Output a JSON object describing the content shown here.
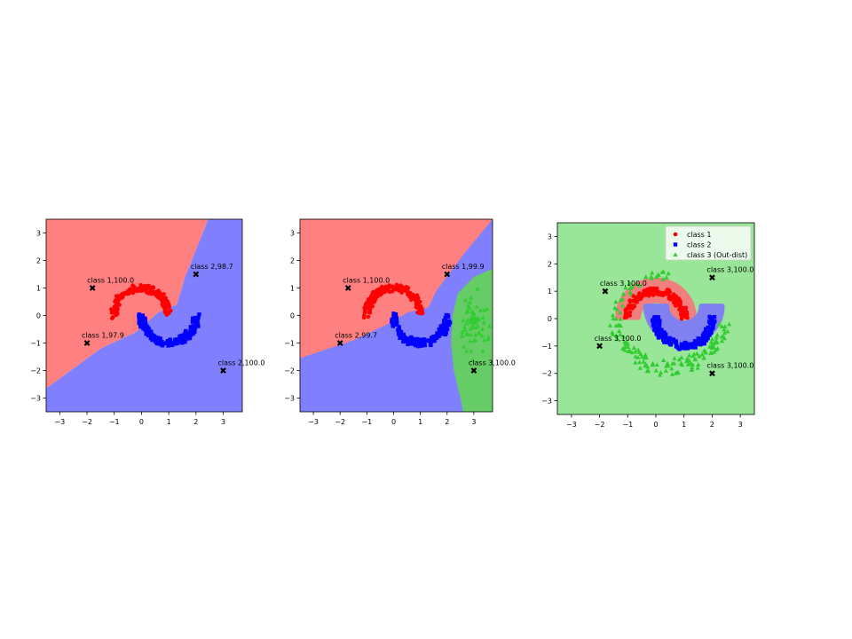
{
  "chart_data": [
    {
      "type": "scatter",
      "xlim": [
        -3.5,
        3.7
      ],
      "ylim": [
        -3.5,
        3.5
      ],
      "xticks": [
        "−3",
        "−2",
        "−1",
        "0",
        "1",
        "2",
        "3"
      ],
      "yticks": [
        "3",
        "2",
        "1",
        "0",
        "−1",
        "−2",
        "−3"
      ],
      "tick_values_x": [
        -3,
        -2,
        -1,
        0,
        1,
        2,
        3
      ],
      "tick_values_y": [
        3,
        2,
        1,
        0,
        -1,
        -2,
        -3
      ],
      "regions": [
        {
          "name": "class 1 region",
          "color": "#ff8080",
          "polygon": [
            [
              -3.5,
              3.5
            ],
            [
              2.45,
              3.5
            ],
            [
              1.6,
              1.4
            ],
            [
              1.3,
              0.4
            ],
            [
              0.6,
              0.1
            ],
            [
              -0.2,
              -0.6
            ],
            [
              -1.5,
              -1.2
            ],
            [
              -3.5,
              -2.65
            ]
          ]
        },
        {
          "name": "class 2 region",
          "color": "#8080ff",
          "polygon": [
            [
              -3.5,
              -3.5
            ],
            [
              3.7,
              -3.5
            ],
            [
              3.7,
              3.5
            ],
            [
              2.45,
              3.5
            ],
            [
              1.6,
              1.4
            ],
            [
              1.3,
              0.4
            ],
            [
              0.6,
              0.1
            ],
            [
              -0.2,
              -0.6
            ],
            [
              -1.5,
              -1.2
            ],
            [
              -3.5,
              -2.65
            ]
          ]
        }
      ],
      "series": [
        {
          "name": "class 1",
          "color": "#ff0000",
          "marker": "circle",
          "shape": "upper"
        },
        {
          "name": "class 2",
          "color": "#0000ff",
          "marker": "square",
          "shape": "lower"
        }
      ],
      "annotations": [
        {
          "x": -1.8,
          "y": 1.0,
          "text": "class 1,100.0"
        },
        {
          "x": 2.0,
          "y": 1.5,
          "text": "class 2,98.7"
        },
        {
          "x": -2.0,
          "y": -1.0,
          "text": "class 1,97.9"
        },
        {
          "x": 3.0,
          "y": -2.0,
          "text": "class 2,100.0"
        }
      ]
    },
    {
      "type": "scatter",
      "xlim": [
        -3.5,
        3.7
      ],
      "ylim": [
        -3.5,
        3.5
      ],
      "xticks": [
        "−3",
        "−2",
        "−1",
        "0",
        "1",
        "2",
        "3"
      ],
      "yticks": [
        "3",
        "2",
        "1",
        "0",
        "−1",
        "−2",
        "−3"
      ],
      "tick_values_x": [
        -3,
        -2,
        -1,
        0,
        1,
        2,
        3
      ],
      "tick_values_y": [
        3,
        2,
        1,
        0,
        -1,
        -2,
        -3
      ],
      "regions": [
        {
          "name": "class 2 region",
          "color": "#8080ff",
          "polygon": [
            [
              -3.5,
              -3.5
            ],
            [
              3.7,
              -3.5
            ],
            [
              3.7,
              3.5
            ],
            [
              -3.5,
              3.5
            ]
          ]
        },
        {
          "name": "class 1 region",
          "color": "#ff8080",
          "polygon": [
            [
              -3.5,
              3.5
            ],
            [
              3.7,
              3.5
            ],
            [
              2.6,
              2.2
            ],
            [
              1.6,
              0.9
            ],
            [
              1.3,
              0.3
            ],
            [
              0.5,
              0.1
            ],
            [
              -0.2,
              -0.3
            ],
            [
              -1.5,
              -0.9
            ],
            [
              -3.5,
              -1.55
            ]
          ]
        },
        {
          "name": "class 3 region",
          "color": "#66cc66",
          "polygon": [
            [
              3.7,
              1.7
            ],
            [
              3.0,
              1.4
            ],
            [
              2.4,
              0.8
            ],
            [
              2.2,
              0.0
            ],
            [
              2.15,
              -1.0
            ],
            [
              2.25,
              -2.0
            ],
            [
              2.5,
              -3.0
            ],
            [
              2.6,
              -3.5
            ],
            [
              3.7,
              -3.5
            ]
          ]
        }
      ],
      "series": [
        {
          "name": "class 1",
          "color": "#ff0000",
          "marker": "circle",
          "shape": "upper"
        },
        {
          "name": "class 2",
          "color": "#0000ff",
          "marker": "square",
          "shape": "lower"
        },
        {
          "name": "class 3",
          "color": "#33cc33",
          "marker": "triangle",
          "shape": "blob",
          "cx": 3.0,
          "cy": -0.3
        }
      ],
      "annotations": [
        {
          "x": -1.7,
          "y": 1.0,
          "text": "class 1,100.0"
        },
        {
          "x": 2.0,
          "y": 1.5,
          "text": "class 1,99.9"
        },
        {
          "x": -2.0,
          "y": -1.0,
          "text": "class 2,99.7"
        },
        {
          "x": 3.0,
          "y": -2.0,
          "text": "class 3,100.0"
        }
      ]
    },
    {
      "type": "scatter",
      "xlim": [
        -3.5,
        3.5
      ],
      "ylim": [
        -3.5,
        3.5
      ],
      "xticks": [
        "−3",
        "−2",
        "−1",
        "0",
        "1",
        "2",
        "3"
      ],
      "yticks": [
        "3",
        "2",
        "1",
        "0",
        "−1",
        "−2",
        "−3"
      ],
      "tick_values_x": [
        -3,
        -2,
        -1,
        0,
        1,
        2,
        3
      ],
      "tick_values_y": [
        3,
        2,
        1,
        0,
        -1,
        -2,
        -3
      ],
      "background": "#99e699",
      "legend_position": "upper right",
      "legend": [
        "class 1",
        "class 2",
        "class 3 (Out-dist)"
      ],
      "regions": [],
      "series": [
        {
          "name": "class 1",
          "color": "#ff0000",
          "marker": "circle",
          "shape": "upper"
        },
        {
          "name": "class 2",
          "color": "#0000ff",
          "marker": "square",
          "shape": "lower"
        },
        {
          "name": "class 3 (Out-dist)",
          "color": "#33cc33",
          "marker": "triangle",
          "shape": "ring"
        }
      ],
      "annotations": [
        {
          "x": -1.8,
          "y": 1.0,
          "text": "class 3,100.0"
        },
        {
          "x": 2.0,
          "y": 1.5,
          "text": "class 3,100.0"
        },
        {
          "x": -2.0,
          "y": -1.0,
          "text": "class 3,100.0"
        },
        {
          "x": 2.0,
          "y": -2.0,
          "text": "class 3,100.0"
        }
      ]
    }
  ]
}
